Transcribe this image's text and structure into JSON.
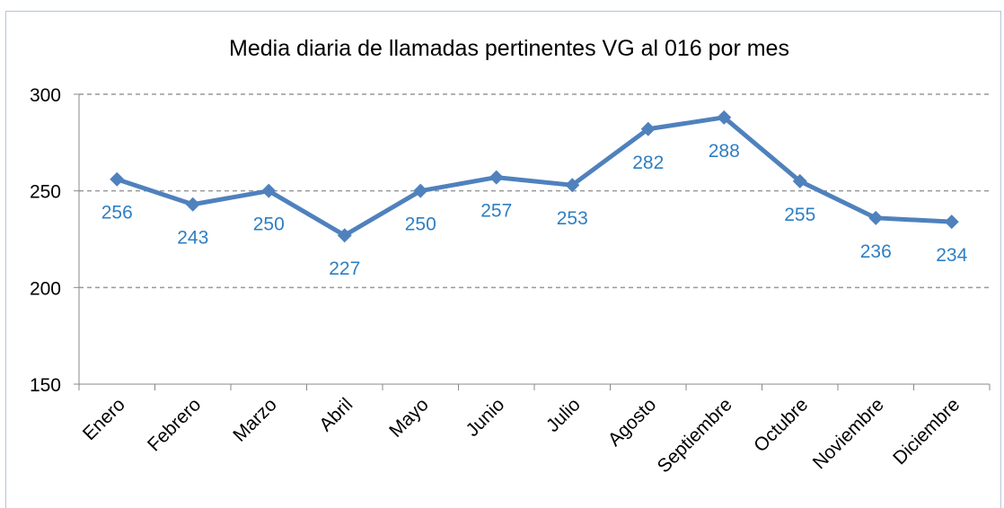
{
  "chart_data": {
    "type": "line",
    "title": "Media diaria de llamadas pertinentes VG al 016 por mes",
    "categories": [
      "Enero",
      "Febrero",
      "Marzo",
      "Abril",
      "Mayo",
      "Junio",
      "Julio",
      "Agosto",
      "Septiembre",
      "Octubre",
      "Noviembre",
      "Diciembre"
    ],
    "values": [
      256,
      243,
      250,
      227,
      250,
      257,
      253,
      282,
      288,
      255,
      236,
      234
    ],
    "color": "#4f81bd",
    "label_color": "#2e7fc3",
    "ylim": [
      150,
      300
    ],
    "yticks": [
      150,
      200,
      250,
      300
    ],
    "grid": true
  }
}
